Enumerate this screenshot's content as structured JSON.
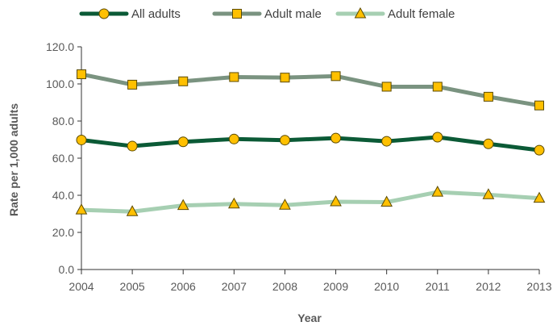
{
  "chart_data": {
    "type": "line",
    "title": "",
    "xlabel": "Year",
    "ylabel": "Rate per 1,000 adults",
    "x": [
      "2004",
      "2005",
      "2006",
      "2007",
      "2008",
      "2009",
      "2010",
      "2011",
      "2012",
      "2013"
    ],
    "ylim": [
      0,
      120
    ],
    "yticks": [
      "0.0",
      "20.0",
      "40.0",
      "60.0",
      "80.0",
      "100.0",
      "120.0"
    ],
    "grid": false,
    "legend_position": "top",
    "series": [
      {
        "name": "All adults",
        "marker": "circle",
        "line_color": "#0b5a36",
        "marker_color": "#ffc000",
        "values": [
          69.8,
          66.5,
          68.8,
          70.3,
          69.7,
          70.8,
          69.1,
          71.3,
          67.7,
          64.3
        ]
      },
      {
        "name": "Adult male",
        "marker": "square",
        "line_color": "#7a9380",
        "marker_color": "#ffc000",
        "values": [
          105.2,
          99.6,
          101.4,
          103.7,
          103.4,
          104.2,
          98.5,
          98.5,
          93.1,
          88.4
        ]
      },
      {
        "name": "Adult female",
        "marker": "triangle",
        "line_color": "#a6cfb2",
        "marker_color": "#ffc000",
        "values": [
          32.1,
          31.2,
          34.5,
          35.3,
          34.7,
          36.5,
          36.3,
          41.7,
          40.3,
          38.4
        ]
      }
    ]
  }
}
